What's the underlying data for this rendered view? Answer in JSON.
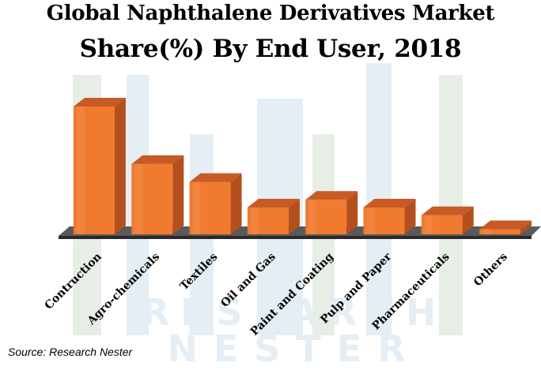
{
  "title_line1": "Global Naphthalene Derivatives Market",
  "title_line2": "Share(%) By End User, 2018",
  "source": "Source: Research Nester",
  "watermark": [
    "RESEARCH",
    "NESTER"
  ],
  "colors": {
    "bar_front": "#f07a2e",
    "bar_top": "#c85a26",
    "bar_side": "#b4501e",
    "floor_top": "#5a5a5a",
    "floor_front": "#2a2a2a",
    "watermark_light": "#e4eef4",
    "watermark_green": "#e6eee6"
  },
  "chart_data": {
    "type": "bar",
    "title": "Global Naphthalene Derivatives Market Share(%) By End User, 2018",
    "xlabel": "",
    "ylabel": "",
    "categories": [
      "Contruction",
      "Agro-chemicals",
      "Textiles",
      "Oil and Gas",
      "Paint and Coating",
      "Pulp and Paper",
      "Pharmaceuticals",
      "Others"
    ],
    "values": [
      100,
      55,
      41,
      21,
      27,
      21,
      15,
      4
    ],
    "ylim": [
      0,
      100
    ],
    "grid": false,
    "legend": "none"
  }
}
